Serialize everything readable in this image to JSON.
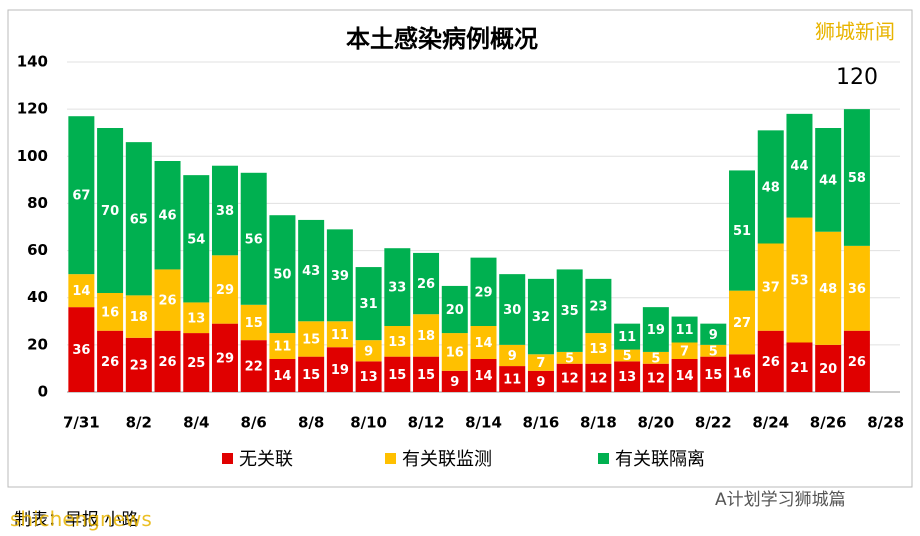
{
  "chart_data": {
    "type": "stacked_bar",
    "title": "本土感染病例概况",
    "annotation": "120",
    "categories": [
      "7/31",
      null,
      "8/2",
      null,
      "8/4",
      null,
      "8/6",
      null,
      "8/8",
      null,
      "8/10",
      null,
      "8/12",
      null,
      "8/14",
      null,
      "8/16",
      null,
      "8/18",
      null,
      "8/20",
      null,
      "8/22",
      null,
      "8/24",
      null,
      "8/26",
      null,
      "8/28"
    ],
    "series": [
      {
        "name": "无关联",
        "color": "#e00000",
        "values": [
          36,
          26,
          23,
          26,
          25,
          29,
          22,
          14,
          15,
          19,
          13,
          15,
          15,
          9,
          14,
          11,
          9,
          12,
          12,
          13,
          12,
          14,
          15,
          16,
          26,
          21,
          20,
          26,
          null
        ]
      },
      {
        "name": "有关联监测",
        "color": "#ffc000",
        "values": [
          14,
          16,
          18,
          26,
          13,
          29,
          15,
          11,
          15,
          11,
          9,
          13,
          18,
          16,
          14,
          9,
          7,
          5,
          13,
          5,
          5,
          7,
          5,
          27,
          37,
          53,
          48,
          36,
          null
        ]
      },
      {
        "name": "有关联隔离",
        "color": "#00b050",
        "values": [
          67,
          70,
          65,
          46,
          54,
          38,
          56,
          50,
          43,
          39,
          31,
          33,
          26,
          20,
          29,
          30,
          32,
          35,
          23,
          11,
          19,
          11,
          9,
          51,
          48,
          44,
          44,
          58,
          null
        ]
      }
    ],
    "ylim": [
      0,
      140
    ],
    "yticks": [
      0,
      20,
      40,
      60,
      80,
      100,
      120,
      140
    ],
    "grid": true
  },
  "watermark": "狮城新闻",
  "footer": {
    "credit": "制表：早报 小路",
    "source": "shichengnews",
    "account": "A计划学习狮城篇"
  }
}
